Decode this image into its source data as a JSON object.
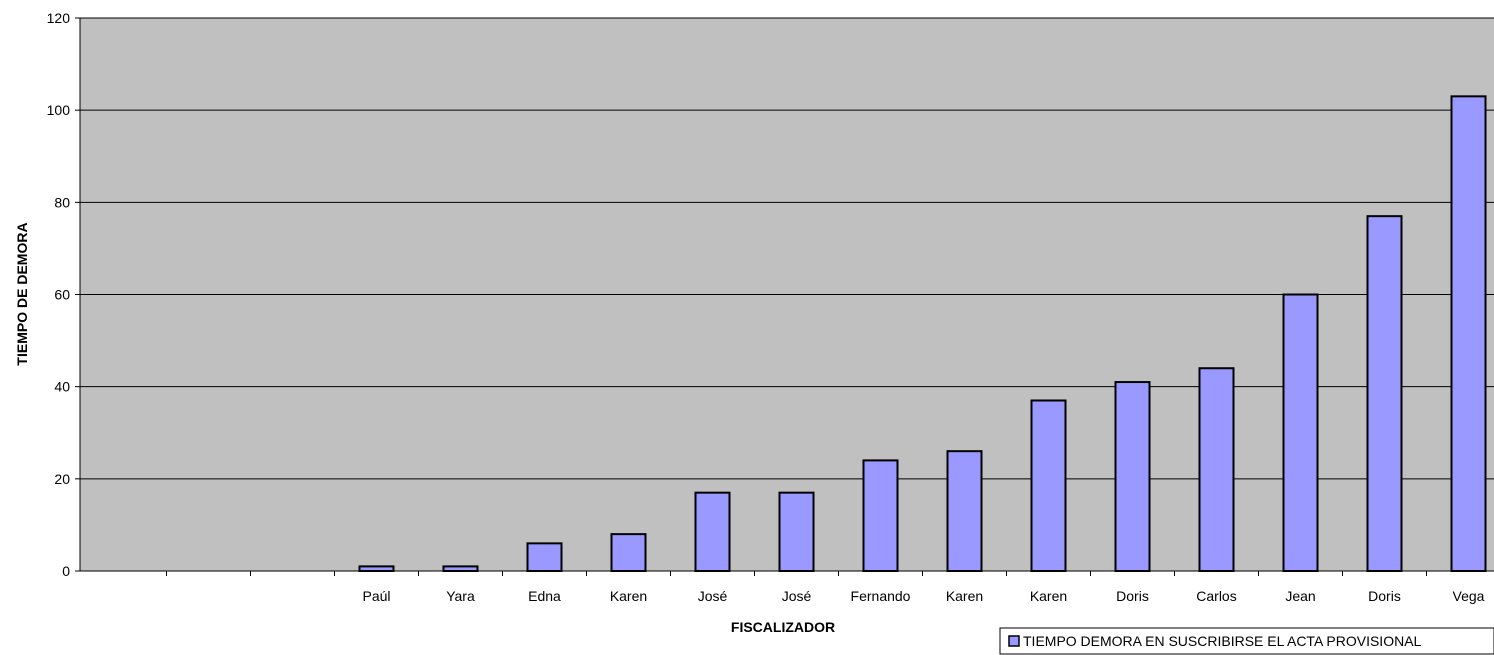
{
  "chart_data": {
    "type": "bar",
    "title": "",
    "xlabel": "FISCALIZADOR",
    "ylabel": "TIEMPO DE DEMORA",
    "ylim": [
      0,
      120
    ],
    "yticks": [
      0,
      20,
      40,
      60,
      80,
      100,
      120
    ],
    "grid": true,
    "legend_position": "bottom-right",
    "categories": [
      "",
      "",
      "",
      "Paúl",
      "Yara",
      "Edna",
      "Karen",
      "José",
      "José",
      "Fernando",
      "Karen",
      "Karen",
      "Doris",
      "Carlos",
      "Jean",
      "Doris",
      "Vega"
    ],
    "series": [
      {
        "name": "TIEMPO DEMORA EN SUSCRIBIRSE EL ACTA PROVISIONAL",
        "values": [
          null,
          null,
          null,
          1,
          1,
          6,
          8,
          17,
          17,
          24,
          26,
          37,
          41,
          44,
          60,
          77,
          103
        ]
      }
    ],
    "colors": {
      "plot_background": "#c0c0c0",
      "bar_fill": "#9999ff",
      "bar_stroke": "#000000",
      "grid": "#000000"
    }
  }
}
